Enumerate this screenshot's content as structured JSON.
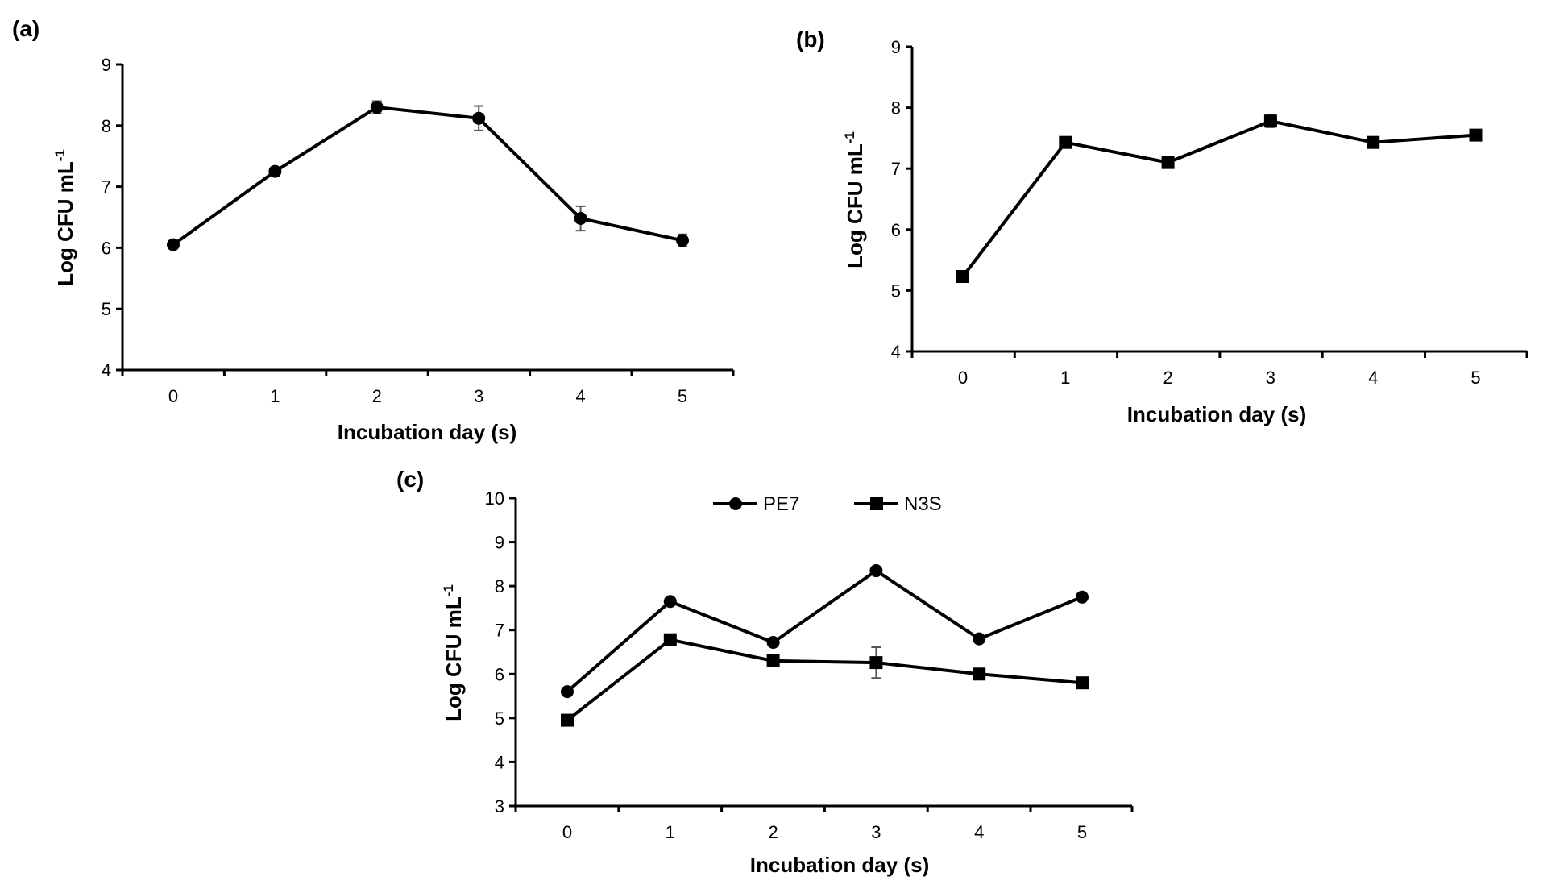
{
  "chart_data": [
    {
      "panel": "(a)",
      "type": "line",
      "categories": [
        "0",
        "1",
        "2",
        "3",
        "4",
        "5"
      ],
      "ylim": [
        4,
        9
      ],
      "yticks": [
        "4",
        "5",
        "6",
        "7",
        "8",
        "9"
      ],
      "xlabel": "Incubation day (s)",
      "ylabel": "Log CFU mL",
      "ylabel_sup": "-1",
      "series": [
        {
          "name": "",
          "marker": "circle",
          "values": [
            6.05,
            7.25,
            8.3,
            8.12,
            6.48,
            6.12
          ],
          "errors": [
            0.05,
            0.07,
            0.1,
            0.2,
            0.2,
            0.1
          ]
        }
      ]
    },
    {
      "panel": "(b)",
      "type": "line",
      "categories": [
        "0",
        "1",
        "2",
        "3",
        "4",
        "5"
      ],
      "ylim": [
        4,
        9
      ],
      "yticks": [
        "4",
        "5",
        "6",
        "7",
        "8",
        "9"
      ],
      "xlabel": "Incubation day (s)",
      "ylabel": "Log CFU mL",
      "ylabel_sup": "-1",
      "series": [
        {
          "name": "",
          "marker": "square",
          "values": [
            5.23,
            7.43,
            7.1,
            7.78,
            7.43,
            7.55
          ],
          "errors": [
            0.04,
            0.06,
            0.05,
            0.1,
            0.05,
            0.05
          ]
        }
      ]
    },
    {
      "panel": "(c)",
      "type": "line",
      "categories": [
        "0",
        "1",
        "2",
        "3",
        "4",
        "5"
      ],
      "ylim": [
        3,
        10
      ],
      "yticks": [
        "3",
        "4",
        "5",
        "6",
        "7",
        "8",
        "9",
        "10"
      ],
      "xlabel": "Incubation day (s)",
      "ylabel": "Log CFU mL",
      "ylabel_sup": "-1",
      "legend_position": "top",
      "series": [
        {
          "name": "PE7",
          "marker": "circle",
          "values": [
            5.6,
            7.65,
            6.72,
            8.35,
            6.8,
            7.75
          ],
          "errors": [
            0.05,
            0.05,
            0.05,
            0.05,
            0.05,
            0.05
          ]
        },
        {
          "name": "N3S",
          "marker": "square",
          "values": [
            4.95,
            6.78,
            6.3,
            6.26,
            6.0,
            5.8
          ],
          "errors": [
            0.05,
            0.05,
            0.05,
            0.35,
            0.05,
            0.05
          ]
        }
      ]
    }
  ]
}
